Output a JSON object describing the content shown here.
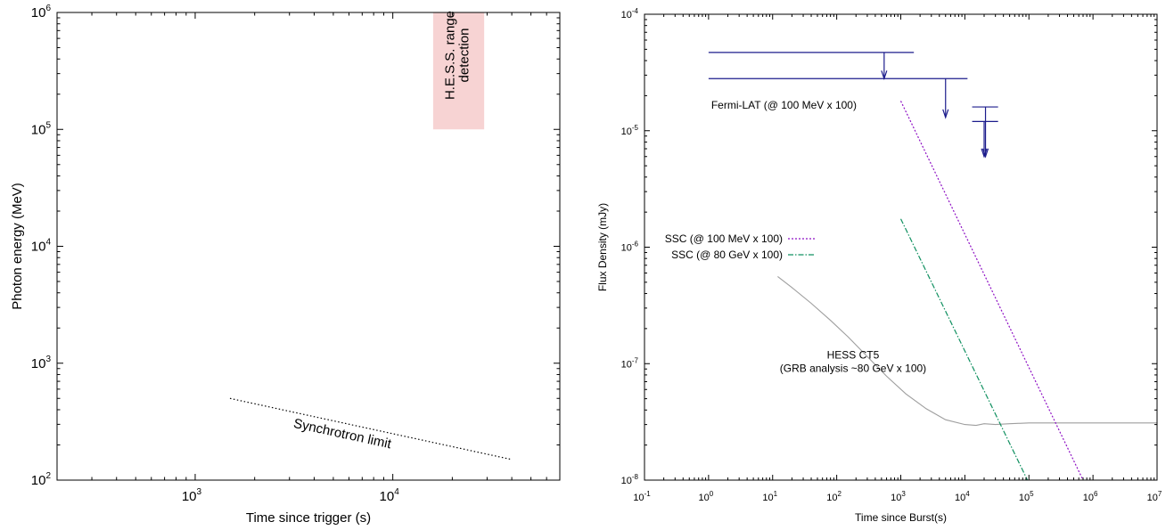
{
  "chart_data": [
    {
      "type": "line",
      "xlabel": "Time since trigger (s)",
      "ylabel": "Photon energy (MeV)",
      "x_scale": "log",
      "y_scale": "log",
      "xlim": [
        200,
        70000
      ],
      "ylim": [
        100,
        1000000
      ],
      "x_ticks": [
        {
          "base": "10",
          "exp": "3",
          "value": 1000
        },
        {
          "base": "10",
          "exp": "4",
          "value": 10000
        }
      ],
      "y_ticks": [
        {
          "base": "10",
          "exp": "2",
          "value": 100
        },
        {
          "base": "10",
          "exp": "3",
          "value": 1000
        },
        {
          "base": "10",
          "exp": "4",
          "value": 10000
        },
        {
          "base": "10",
          "exp": "5",
          "value": 100000
        },
        {
          "base": "10",
          "exp": "6",
          "value": 1000000
        }
      ],
      "grid": false,
      "series": [
        {
          "name": "Synchrotron limit",
          "x": [
            1500,
            40000
          ],
          "y": [
            500,
            150
          ],
          "style": "dotted",
          "color": "#000000"
        }
      ],
      "region": {
        "label_lines": [
          "H.E.S.S. range",
          "detection"
        ],
        "x": [
          16000,
          29000
        ],
        "y": [
          100000,
          1000000
        ],
        "color": "#f7d3d3"
      },
      "annotation": {
        "text": "Synchrotron limit",
        "x": 5500,
        "y": 230
      }
    },
    {
      "type": "line",
      "xlabel": "Time since Burst(s)",
      "ylabel": "Flux Density (mJy)",
      "x_scale": "log",
      "y_scale": "log",
      "xlim": [
        0.1,
        10000000
      ],
      "ylim": [
        1e-08,
        0.0001
      ],
      "x_ticks": [
        {
          "base": "10",
          "exp": "-1",
          "value": 0.1
        },
        {
          "base": "10",
          "exp": "0",
          "value": 1
        },
        {
          "base": "10",
          "exp": "1",
          "value": 10
        },
        {
          "base": "10",
          "exp": "2",
          "value": 100
        },
        {
          "base": "10",
          "exp": "3",
          "value": 1000
        },
        {
          "base": "10",
          "exp": "4",
          "value": 10000
        },
        {
          "base": "10",
          "exp": "5",
          "value": 100000
        },
        {
          "base": "10",
          "exp": "6",
          "value": 1000000
        },
        {
          "base": "10",
          "exp": "7",
          "value": 10000000
        }
      ],
      "y_ticks": [
        {
          "base": "10",
          "exp": "-8",
          "value": 1e-08
        },
        {
          "base": "10",
          "exp": "-7",
          "value": 1e-07
        },
        {
          "base": "10",
          "exp": "-6",
          "value": 1e-06
        },
        {
          "base": "10",
          "exp": "-5",
          "value": 1e-05
        },
        {
          "base": "10",
          "exp": "-4",
          "value": 0.0001
        }
      ],
      "grid": false,
      "legend": {
        "placement": "middle-left"
      },
      "series": [
        {
          "name": "SSC (@ 100 MeV x 100)",
          "x": [
            1000,
            700000
          ],
          "y": [
            1.8e-05,
            1e-08
          ],
          "style": "dotted",
          "color": "#8e10c4"
        },
        {
          "name": "SSC (@ 80 GeV x 100)",
          "x": [
            1000,
            95000
          ],
          "y": [
            1.75e-06,
            1e-08
          ],
          "style": "dash-dot",
          "color": "#109060"
        }
      ],
      "hess_curve": {
        "label_lines": [
          "HESS CT5",
          "(GRB analysis ~80 GeV x 100)"
        ],
        "color": "#9e9e9e",
        "x": [
          12,
          20,
          40,
          80,
          150,
          300,
          600,
          1200,
          2500,
          5000,
          10000,
          15000,
          20000,
          30000,
          50000,
          100000,
          1000000,
          10000000
        ],
        "y": [
          5.6e-07,
          4.5e-07,
          3.3e-07,
          2.35e-07,
          1.7e-07,
          1.15e-07,
          7.8e-08,
          5.5e-08,
          4.1e-08,
          3.3e-08,
          3e-08,
          2.95e-08,
          3.05e-08,
          3e-08,
          3.05e-08,
          3.1e-08,
          3.1e-08,
          3.1e-08
        ]
      },
      "fermi_limits": {
        "label": "Fermi-LAT (@ 100 MeV x 100)",
        "color": "#1c1c8c",
        "limits": [
          {
            "x_start": 1,
            "x_end": 1600,
            "x_arrow": 550,
            "y": 4.7e-05,
            "y_arrow_end": 2.8e-05
          },
          {
            "x_start": 1,
            "x_end": 11000,
            "x_arrow": 5000,
            "y": 2.8e-05,
            "y_arrow_end": 1.3e-05
          },
          {
            "x_start": 13000,
            "x_end": 33000,
            "x_arrow": 21000,
            "y": 1.6e-05,
            "y_arrow_end": 6e-06
          },
          {
            "x_start": 13000,
            "x_end": 33000,
            "x_arrow": 20000,
            "y": 1.2e-05,
            "y_arrow_end": 6e-06
          }
        ]
      }
    }
  ]
}
